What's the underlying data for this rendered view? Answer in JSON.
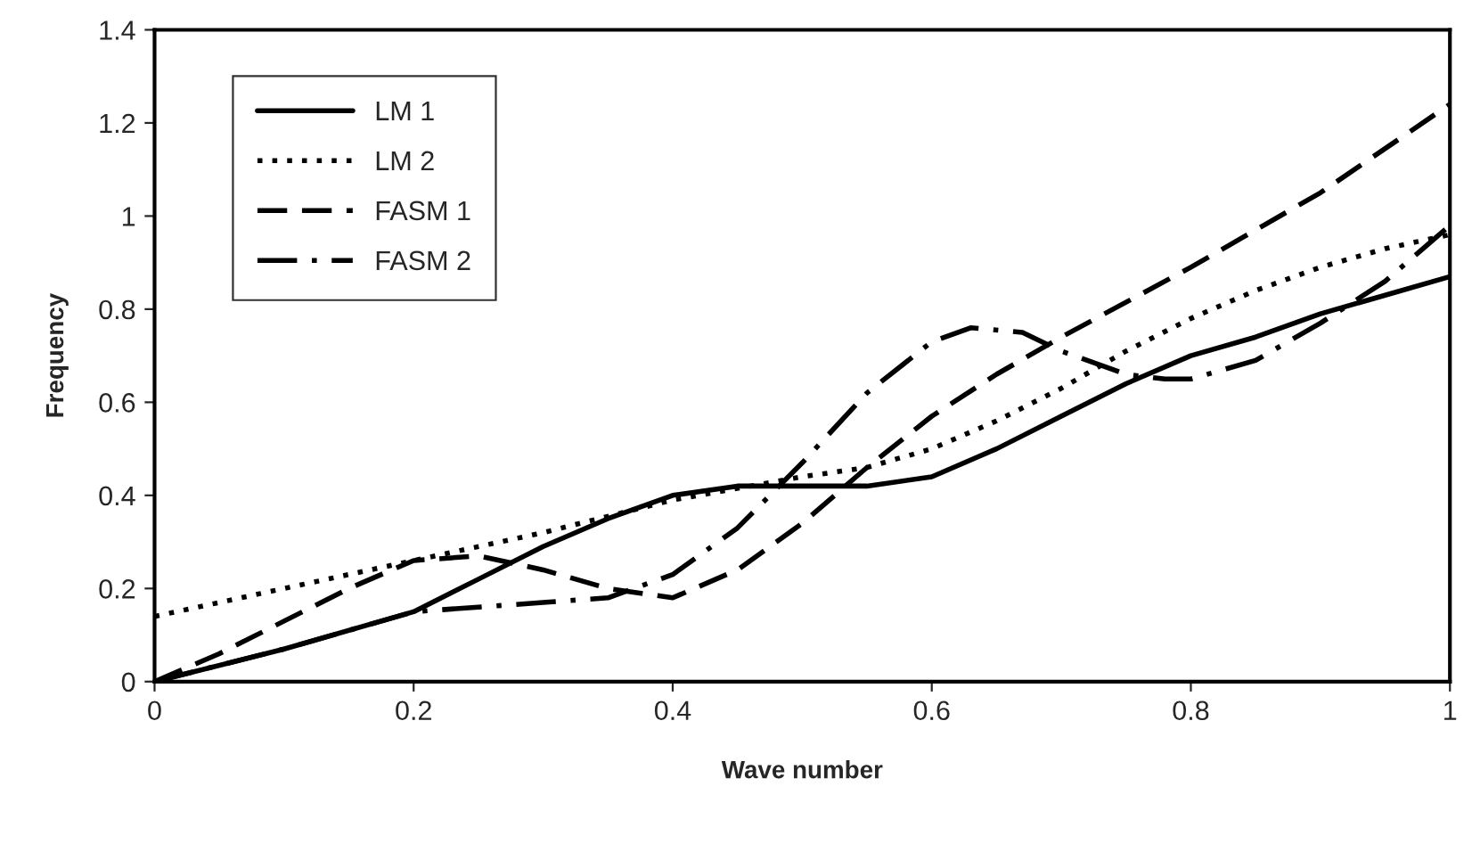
{
  "chart_data": {
    "type": "line",
    "xlabel": "Wave number",
    "ylabel": "Frequency",
    "xlim": [
      0,
      1
    ],
    "ylim": [
      0,
      1.4
    ],
    "xticks": [
      0,
      0.2,
      0.4,
      0.6,
      0.8,
      1
    ],
    "yticks": [
      0,
      0.2,
      0.4,
      0.6,
      0.8,
      1,
      1.2,
      1.4
    ],
    "grid": false,
    "legend": "top left",
    "marker": "none",
    "series": [
      {
        "name": "LM 1",
        "color": "#000000",
        "line_style": "solid",
        "x": [
          0,
          0.1,
          0.2,
          0.25,
          0.3,
          0.35,
          0.4,
          0.45,
          0.5,
          0.55,
          0.6,
          0.65,
          0.7,
          0.75,
          0.8,
          0.85,
          0.9,
          0.95,
          1
        ],
        "values": [
          0,
          0.07,
          0.15,
          0.22,
          0.29,
          0.35,
          0.4,
          0.42,
          0.42,
          0.42,
          0.44,
          0.5,
          0.57,
          0.64,
          0.7,
          0.74,
          0.79,
          0.83,
          0.87
        ]
      },
      {
        "name": "LM 2",
        "color": "#000000",
        "line_style": "dotted",
        "x": [
          0,
          0.1,
          0.2,
          0.3,
          0.4,
          0.5,
          0.55,
          0.6,
          0.65,
          0.7,
          0.75,
          0.8,
          0.85,
          0.9,
          0.95,
          1
        ],
        "values": [
          0.14,
          0.2,
          0.26,
          0.32,
          0.39,
          0.44,
          0.46,
          0.5,
          0.56,
          0.63,
          0.71,
          0.78,
          0.84,
          0.89,
          0.93,
          0.96
        ]
      },
      {
        "name": "FASM 1",
        "color": "#000000",
        "line_style": "dashed",
        "x": [
          0,
          0.05,
          0.1,
          0.15,
          0.2,
          0.25,
          0.3,
          0.35,
          0.4,
          0.45,
          0.5,
          0.55,
          0.6,
          0.65,
          0.7,
          0.8,
          0.9,
          1
        ],
        "values": [
          0,
          0.06,
          0.13,
          0.2,
          0.26,
          0.27,
          0.24,
          0.2,
          0.18,
          0.24,
          0.34,
          0.46,
          0.57,
          0.66,
          0.74,
          0.89,
          1.05,
          1.24
        ]
      },
      {
        "name": "FASM 2",
        "color": "#000000",
        "line_style": "dashdot",
        "x": [
          0,
          0.1,
          0.2,
          0.3,
          0.35,
          0.4,
          0.45,
          0.5,
          0.55,
          0.6,
          0.63,
          0.67,
          0.7,
          0.75,
          0.78,
          0.8,
          0.85,
          0.9,
          0.95,
          1
        ],
        "values": [
          0,
          0.07,
          0.15,
          0.17,
          0.18,
          0.23,
          0.33,
          0.47,
          0.62,
          0.73,
          0.76,
          0.75,
          0.71,
          0.66,
          0.65,
          0.65,
          0.69,
          0.77,
          0.86,
          0.98
        ]
      }
    ]
  }
}
